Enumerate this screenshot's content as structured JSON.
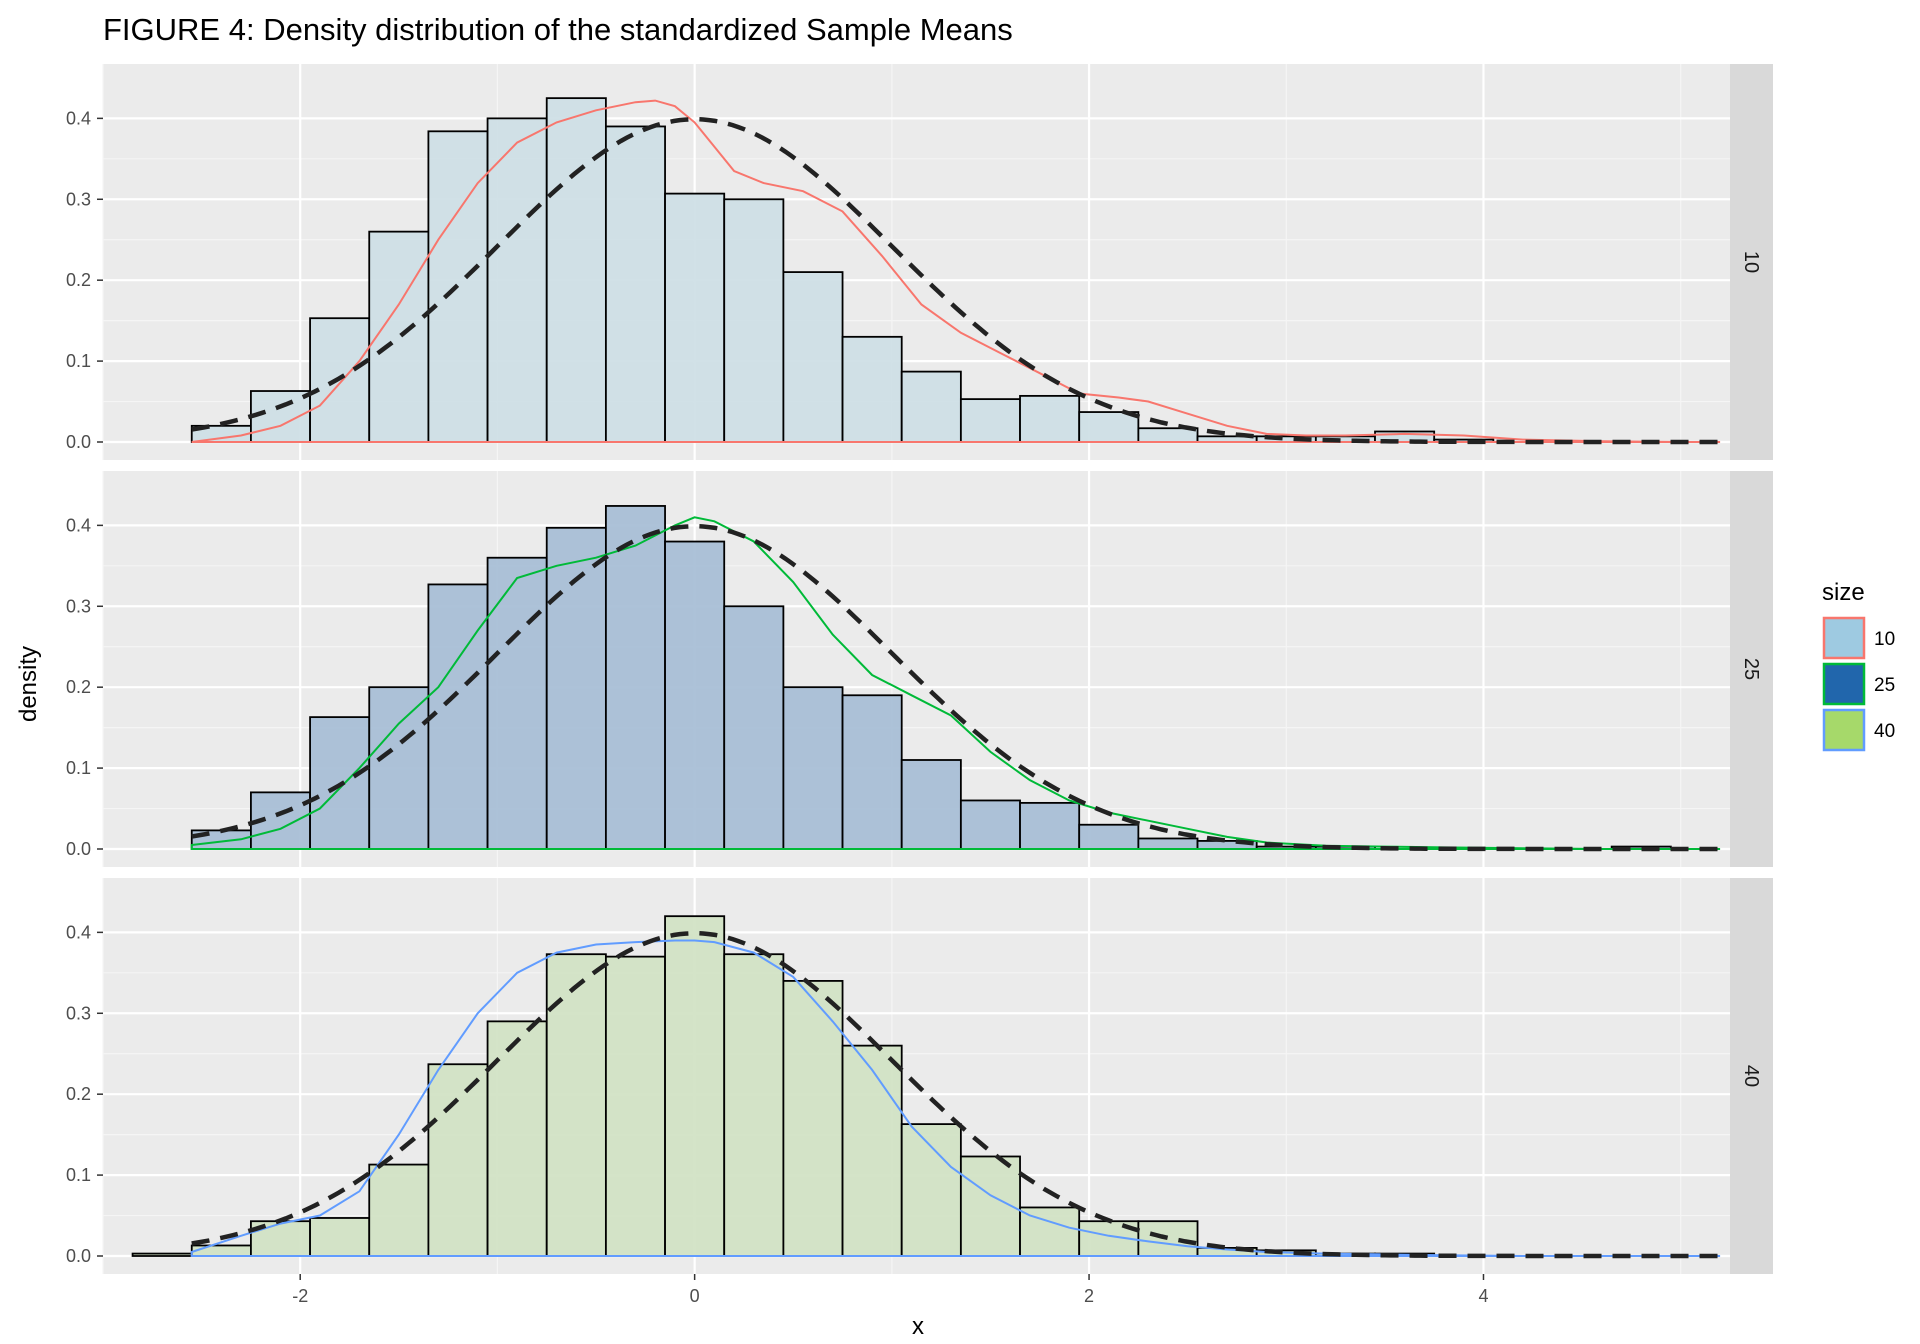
{
  "chart_data": {
    "type": "histogram-facets",
    "title": "FIGURE 4: Density distribution of the standardized Sample Means",
    "xlabel": "x",
    "ylabel": "density",
    "xlim": [
      -3.0,
      5.25
    ],
    "ylim": [
      0,
      0.44
    ],
    "x_ticks": [
      -2,
      0,
      2,
      4
    ],
    "x_tick_labels": [
      "-2",
      "0",
      "2",
      "4"
    ],
    "y_ticks": [
      0,
      0.1,
      0.2,
      0.3,
      0.4
    ],
    "y_tick_labels": [
      "0.0",
      "0.1",
      "0.2",
      "0.3",
      "0.4"
    ],
    "grid": true,
    "legend": {
      "title": "size",
      "position": "right",
      "items": [
        {
          "label": "10",
          "fill": "#9ecae1",
          "border": "#f8766d"
        },
        {
          "label": "25",
          "fill": "#2166ac",
          "border": "#00ba38"
        },
        {
          "label": "40",
          "fill": "#a6d96a",
          "border": "#619cff"
        }
      ]
    },
    "bin_width": 0.3,
    "bin_edges_start": -2.85,
    "normal_curve": {
      "style": "dashed",
      "color": "#222222",
      "mean": 0,
      "sd": 1
    },
    "panels": [
      {
        "strip": "10",
        "fill": "#cfdfe6",
        "density_color": "#f8766d",
        "counts": [
          0.0,
          0.02,
          0.063,
          0.153,
          0.26,
          0.384,
          0.4,
          0.425,
          0.39,
          0.307,
          0.3,
          0.21,
          0.13,
          0.087,
          0.053,
          0.057,
          0.037,
          0.017,
          0.007,
          0.007,
          0.007,
          0.013,
          0.003,
          0.0,
          0.0,
          0.0
        ],
        "density_x": [
          -2.55,
          -2.3,
          -2.1,
          -1.9,
          -1.7,
          -1.5,
          -1.3,
          -1.1,
          -0.9,
          -0.7,
          -0.5,
          -0.3,
          -0.2,
          -0.1,
          0.0,
          0.1,
          0.2,
          0.35,
          0.55,
          0.75,
          0.95,
          1.15,
          1.35,
          1.55,
          1.75,
          1.95,
          2.15,
          2.3,
          2.5,
          2.7,
          2.9,
          3.1,
          3.3,
          3.6,
          3.9,
          4.2,
          4.6,
          5.0,
          5.2
        ],
        "density_y": [
          0.0,
          0.008,
          0.02,
          0.045,
          0.1,
          0.17,
          0.25,
          0.32,
          0.37,
          0.395,
          0.41,
          0.42,
          0.422,
          0.415,
          0.395,
          0.365,
          0.335,
          0.32,
          0.31,
          0.285,
          0.23,
          0.17,
          0.135,
          0.11,
          0.085,
          0.06,
          0.055,
          0.05,
          0.035,
          0.02,
          0.01,
          0.008,
          0.008,
          0.01,
          0.008,
          0.003,
          0.001,
          0.0,
          0.0
        ]
      },
      {
        "strip": "25",
        "fill": "#a9bfd6",
        "density_color": "#00ba38",
        "counts": [
          0.0,
          0.023,
          0.07,
          0.163,
          0.2,
          0.327,
          0.36,
          0.397,
          0.424,
          0.38,
          0.3,
          0.2,
          0.19,
          0.11,
          0.06,
          0.057,
          0.03,
          0.013,
          0.01,
          0.003,
          0.003,
          0.0,
          0.0,
          0.0,
          0.0,
          0.003
        ],
        "density_x": [
          -2.55,
          -2.3,
          -2.1,
          -1.9,
          -1.7,
          -1.5,
          -1.3,
          -1.1,
          -0.9,
          -0.7,
          -0.5,
          -0.3,
          -0.1,
          0.0,
          0.1,
          0.3,
          0.5,
          0.7,
          0.9,
          1.1,
          1.3,
          1.5,
          1.7,
          1.9,
          2.1,
          2.3,
          2.5,
          2.7,
          2.9,
          3.2,
          3.5,
          3.8,
          4.2,
          4.6,
          5.0,
          5.2
        ],
        "density_y": [
          0.005,
          0.012,
          0.025,
          0.05,
          0.1,
          0.155,
          0.2,
          0.27,
          0.335,
          0.35,
          0.36,
          0.375,
          0.4,
          0.41,
          0.405,
          0.38,
          0.33,
          0.265,
          0.215,
          0.19,
          0.165,
          0.12,
          0.085,
          0.06,
          0.045,
          0.035,
          0.025,
          0.015,
          0.008,
          0.004,
          0.003,
          0.002,
          0.001,
          0.0,
          0.0,
          0.0
        ]
      },
      {
        "strip": "40",
        "fill": "#d2e3c5",
        "density_color": "#619cff",
        "counts": [
          0.003,
          0.013,
          0.043,
          0.047,
          0.113,
          0.237,
          0.29,
          0.373,
          0.37,
          0.42,
          0.373,
          0.34,
          0.26,
          0.163,
          0.123,
          0.06,
          0.043,
          0.043,
          0.01,
          0.007,
          0.003,
          0.003,
          0.0,
          0.0,
          0.0,
          0.0
        ],
        "density_x": [
          -2.55,
          -2.3,
          -2.1,
          -1.9,
          -1.7,
          -1.5,
          -1.3,
          -1.1,
          -0.9,
          -0.7,
          -0.5,
          -0.3,
          -0.1,
          0.0,
          0.1,
          0.3,
          0.5,
          0.7,
          0.9,
          1.1,
          1.3,
          1.5,
          1.7,
          1.9,
          2.1,
          2.3,
          2.5,
          2.7,
          2.9,
          3.2,
          3.5,
          3.8,
          4.2,
          4.6,
          5.0,
          5.2
        ],
        "density_y": [
          0.005,
          0.025,
          0.04,
          0.05,
          0.08,
          0.15,
          0.23,
          0.3,
          0.35,
          0.375,
          0.385,
          0.388,
          0.39,
          0.39,
          0.388,
          0.375,
          0.345,
          0.29,
          0.23,
          0.16,
          0.11,
          0.075,
          0.05,
          0.035,
          0.025,
          0.018,
          0.012,
          0.008,
          0.005,
          0.003,
          0.002,
          0.001,
          0.0,
          0.0,
          0.0,
          0.0
        ]
      }
    ]
  }
}
